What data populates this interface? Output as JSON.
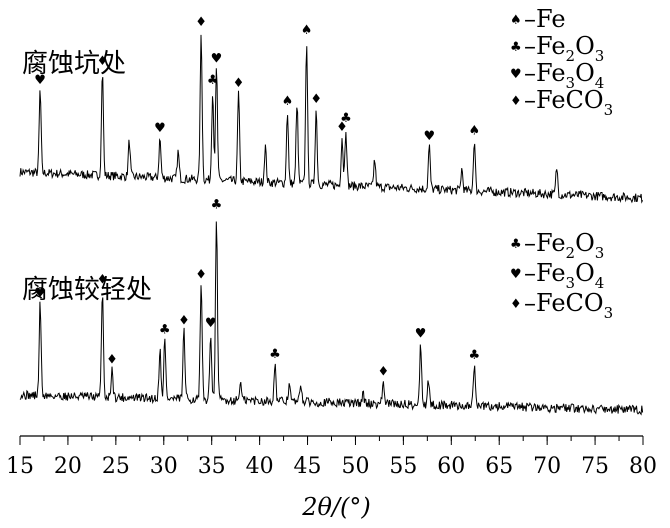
{
  "chart_data": {
    "type": "line",
    "xlabel": "2θ/(°)",
    "xlim": [
      15,
      80
    ],
    "xticks": [
      15,
      20,
      25,
      30,
      35,
      40,
      45,
      50,
      55,
      60,
      65,
      70,
      75,
      80
    ],
    "grid": false,
    "symbols": {
      "Fe": "♠",
      "Fe2O3": "♣",
      "Fe3O4": "♥",
      "FeCO3": "♦"
    },
    "series": [
      {
        "name": "腐蚀坑处",
        "legend_position": "top-right",
        "legend": [
          {
            "symbol": "♠",
            "text": "–Fe"
          },
          {
            "symbol": "♣",
            "text": "–Fe",
            "sub": [
              "2",
              "3"
            ],
            "mid": "O"
          },
          {
            "symbol": "♥",
            "text": "–Fe",
            "sub": [
              "3",
              "4"
            ],
            "mid": "O"
          },
          {
            "symbol": "♦",
            "text": "–FeCO",
            "sub": [
              "",
              "3"
            ],
            "mid": ""
          }
        ],
        "peaks": [
          {
            "x": 17.1,
            "h": 0.46,
            "symbol": "♥"
          },
          {
            "x": 23.6,
            "h": 0.58,
            "symbol": "♦"
          },
          {
            "x": 26.4,
            "h": 0.2,
            "symbol": ""
          },
          {
            "x": 29.6,
            "h": 0.22,
            "symbol": "♥"
          },
          {
            "x": 31.5,
            "h": 0.15,
            "symbol": ""
          },
          {
            "x": 33.9,
            "h": 0.82,
            "symbol": "♦"
          },
          {
            "x": 35.1,
            "h": 0.5,
            "symbol": "♣"
          },
          {
            "x": 35.5,
            "h": 0.62,
            "symbol": "♥"
          },
          {
            "x": 37.8,
            "h": 0.49,
            "symbol": "♦"
          },
          {
            "x": 40.6,
            "h": 0.2,
            "symbol": ""
          },
          {
            "x": 42.9,
            "h": 0.4,
            "symbol": "♠"
          },
          {
            "x": 43.9,
            "h": 0.45,
            "symbol": ""
          },
          {
            "x": 44.9,
            "h": 0.8,
            "symbol": "♠"
          },
          {
            "x": 45.9,
            "h": 0.42,
            "symbol": "♦"
          },
          {
            "x": 48.6,
            "h": 0.27,
            "symbol": "♦"
          },
          {
            "x": 49.0,
            "h": 0.32,
            "symbol": "♣"
          },
          {
            "x": 52.0,
            "h": 0.15,
            "symbol": ""
          },
          {
            "x": 57.7,
            "h": 0.24,
            "symbol": "♥"
          },
          {
            "x": 61.1,
            "h": 0.12,
            "symbol": ""
          },
          {
            "x": 62.4,
            "h": 0.28,
            "symbol": "♠"
          },
          {
            "x": 71.0,
            "h": 0.15,
            "symbol": ""
          }
        ]
      },
      {
        "name": "腐蚀较轻处",
        "legend_position": "right",
        "legend": [
          {
            "symbol": "♣",
            "text": "–Fe",
            "sub": [
              "2",
              "3"
            ],
            "mid": "O"
          },
          {
            "symbol": "♥",
            "text": "–Fe",
            "sub": [
              "3",
              "4"
            ],
            "mid": "O"
          },
          {
            "symbol": "♦",
            "text": "–FeCO",
            "sub": [
              "",
              "3"
            ],
            "mid": ""
          }
        ],
        "peaks": [
          {
            "x": 17.1,
            "h": 0.5,
            "symbol": "♥"
          },
          {
            "x": 23.6,
            "h": 0.58,
            "symbol": "♦"
          },
          {
            "x": 24.6,
            "h": 0.15,
            "symbol": "♦"
          },
          {
            "x": 29.6,
            "h": 0.27,
            "symbol": ""
          },
          {
            "x": 30.1,
            "h": 0.32,
            "symbol": "♣"
          },
          {
            "x": 32.1,
            "h": 0.37,
            "symbol": "♦"
          },
          {
            "x": 33.9,
            "h": 0.62,
            "symbol": "♦"
          },
          {
            "x": 34.9,
            "h": 0.36,
            "symbol": "♥"
          },
          {
            "x": 35.5,
            "h": 1.0,
            "symbol": "♣"
          },
          {
            "x": 38.0,
            "h": 0.1,
            "symbol": ""
          },
          {
            "x": 41.6,
            "h": 0.2,
            "symbol": "♣"
          },
          {
            "x": 43.1,
            "h": 0.1,
            "symbol": ""
          },
          {
            "x": 44.3,
            "h": 0.1,
            "symbol": ""
          },
          {
            "x": 50.8,
            "h": 0.05,
            "symbol": ""
          },
          {
            "x": 52.9,
            "h": 0.12,
            "symbol": "♦"
          },
          {
            "x": 56.8,
            "h": 0.33,
            "symbol": "♥"
          },
          {
            "x": 57.6,
            "h": 0.14,
            "symbol": ""
          },
          {
            "x": 62.4,
            "h": 0.22,
            "symbol": "♣"
          }
        ]
      }
    ]
  }
}
